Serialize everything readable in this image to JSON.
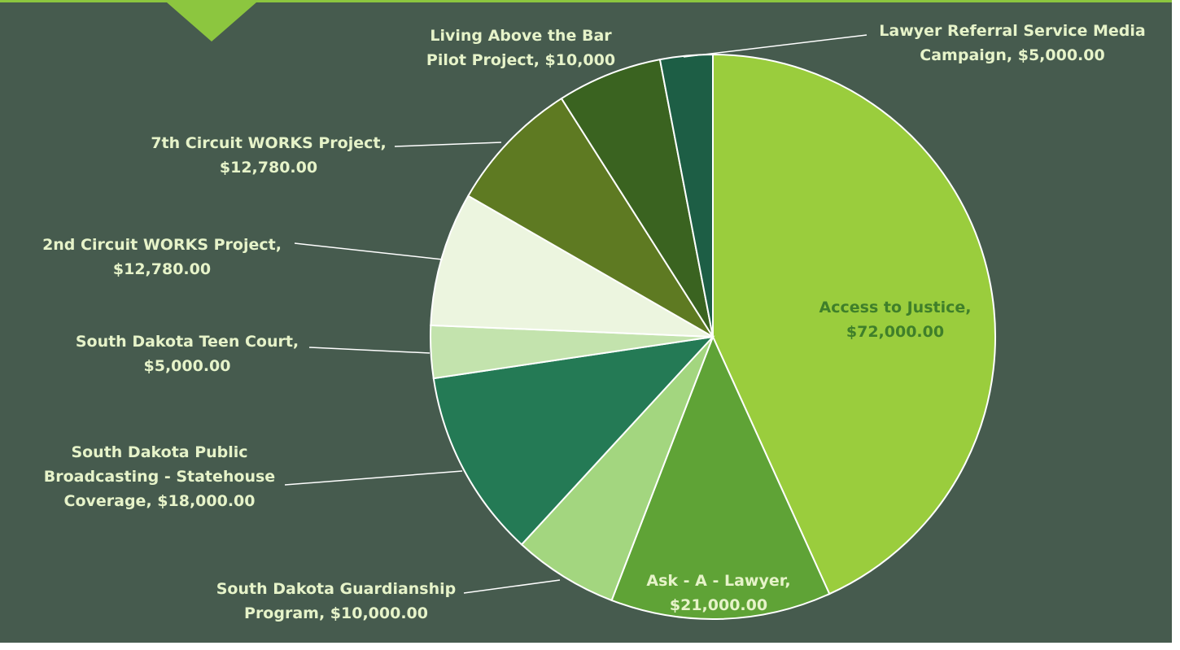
{
  "colors": {
    "background": "#465b4e",
    "accent_bar": "#8cc63f",
    "label_on_dark": "#e6f3c9",
    "label_on_light": "#3f7f2a",
    "leader_line": "#ffffff"
  },
  "chart_data": {
    "type": "pie",
    "title": "",
    "start_angle": "12 o'clock, clockwise",
    "slices": [
      {
        "label_lines": [
          "Access to Justice,",
          "$72,000.00"
        ],
        "category": "Access to Justice",
        "value": 72000.0,
        "color": "#9acd3d"
      },
      {
        "label_lines": [
          "Ask - A - Lawyer,",
          "$21,000.00"
        ],
        "category": "Ask - A - Lawyer",
        "value": 21000.0,
        "color": "#5fa336"
      },
      {
        "label_lines": [
          "South Dakota Guardianship",
          "Program,  $10,000.00"
        ],
        "category": "South Dakota Guardianship Program",
        "value": 10000.0,
        "color": "#a3d67f"
      },
      {
        "label_lines": [
          "South Dakota Public",
          "Broadcasting - Statehouse",
          "Coverage,  $18,000.00"
        ],
        "category": "South Dakota Public Broadcasting - Statehouse Coverage",
        "value": 18000.0,
        "color": "#247a55"
      },
      {
        "label_lines": [
          "South Dakota Teen Court,",
          "$5,000.00"
        ],
        "category": "South Dakota Teen Court",
        "value": 5000.0,
        "color": "#c3e3ad"
      },
      {
        "label_lines": [
          "2nd Circuit WORKS Project,",
          "$12,780.00"
        ],
        "category": "2nd Circuit WORKS Project",
        "value": 12780.0,
        "color": "#ecf5df"
      },
      {
        "label_lines": [
          "7th Circuit WORKS Project,",
          "$12,780.00"
        ],
        "category": "7th Circuit WORKS Project",
        "value": 12780.0,
        "color": "#5e7a22"
      },
      {
        "label_lines": [
          "Living Above the Bar",
          "Pilot Project, $10,000"
        ],
        "category": "Living Above the Bar Pilot Project",
        "value": 10000,
        "color": "#3a6320"
      },
      {
        "label_lines": [
          "Lawyer Referral Service Media",
          "Campaign,  $5,000.00"
        ],
        "category": "Lawyer Referral Service Media Campaign",
        "value": 5000.0,
        "color": "#1d5e45"
      }
    ]
  }
}
